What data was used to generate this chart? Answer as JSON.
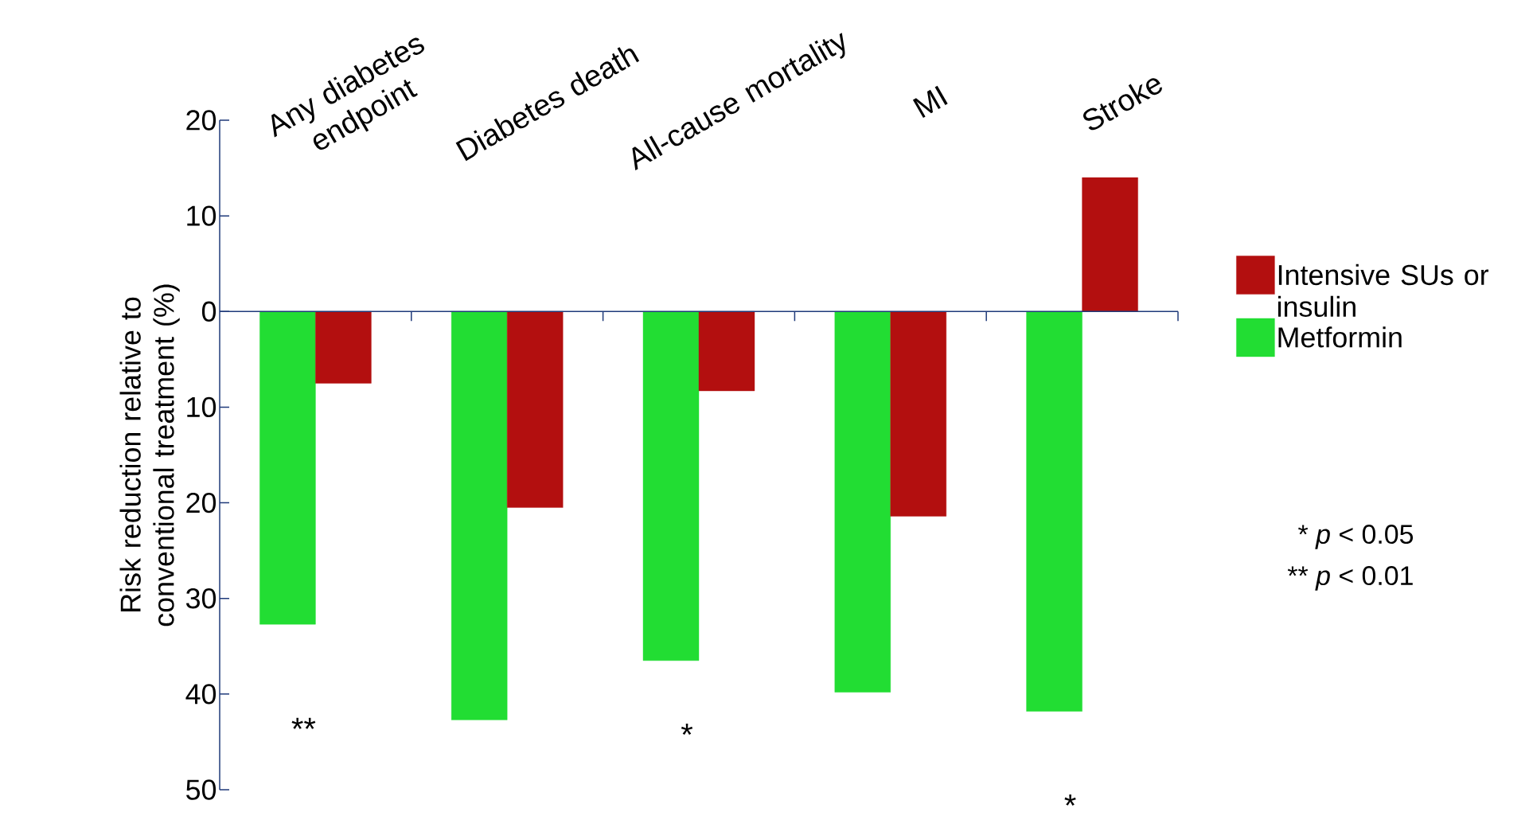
{
  "chart_data": {
    "type": "bar",
    "categories": [
      "Any diabetes endpoint",
      "Diabetes death",
      "All-cause mortality",
      "MI",
      "Stroke"
    ],
    "ylabel": "Risk reduction relative to conventional treatment (%)",
    "series": [
      {
        "name": "Metformin",
        "color": "#22dd33",
        "values": [
          -32.7,
          -42.7,
          -36.5,
          -39.8,
          -41.8
        ]
      },
      {
        "name": "Intensive SUs or insulin",
        "color": "#b30f0f",
        "values": [
          -7.5,
          -20.5,
          -8.3,
          -21.4,
          14
        ]
      }
    ],
    "ylim": [
      -50,
      20
    ],
    "yticks": [
      {
        "value": -50,
        "label": "50"
      },
      {
        "value": -40,
        "label": "40"
      },
      {
        "value": -30,
        "label": "30"
      },
      {
        "value": -20,
        "label": "20"
      },
      {
        "value": -10,
        "label": "10"
      },
      0,
      10,
      20
    ],
    "legend": "right",
    "ref_lines": [
      {
        "axis": "y",
        "value": 0,
        "color": "#1f3a7a"
      }
    ],
    "annotations": [
      "**",
      "*",
      "*",
      "* *p* < 0.05",
      "** *p* < 0.01"
    ]
  }
}
